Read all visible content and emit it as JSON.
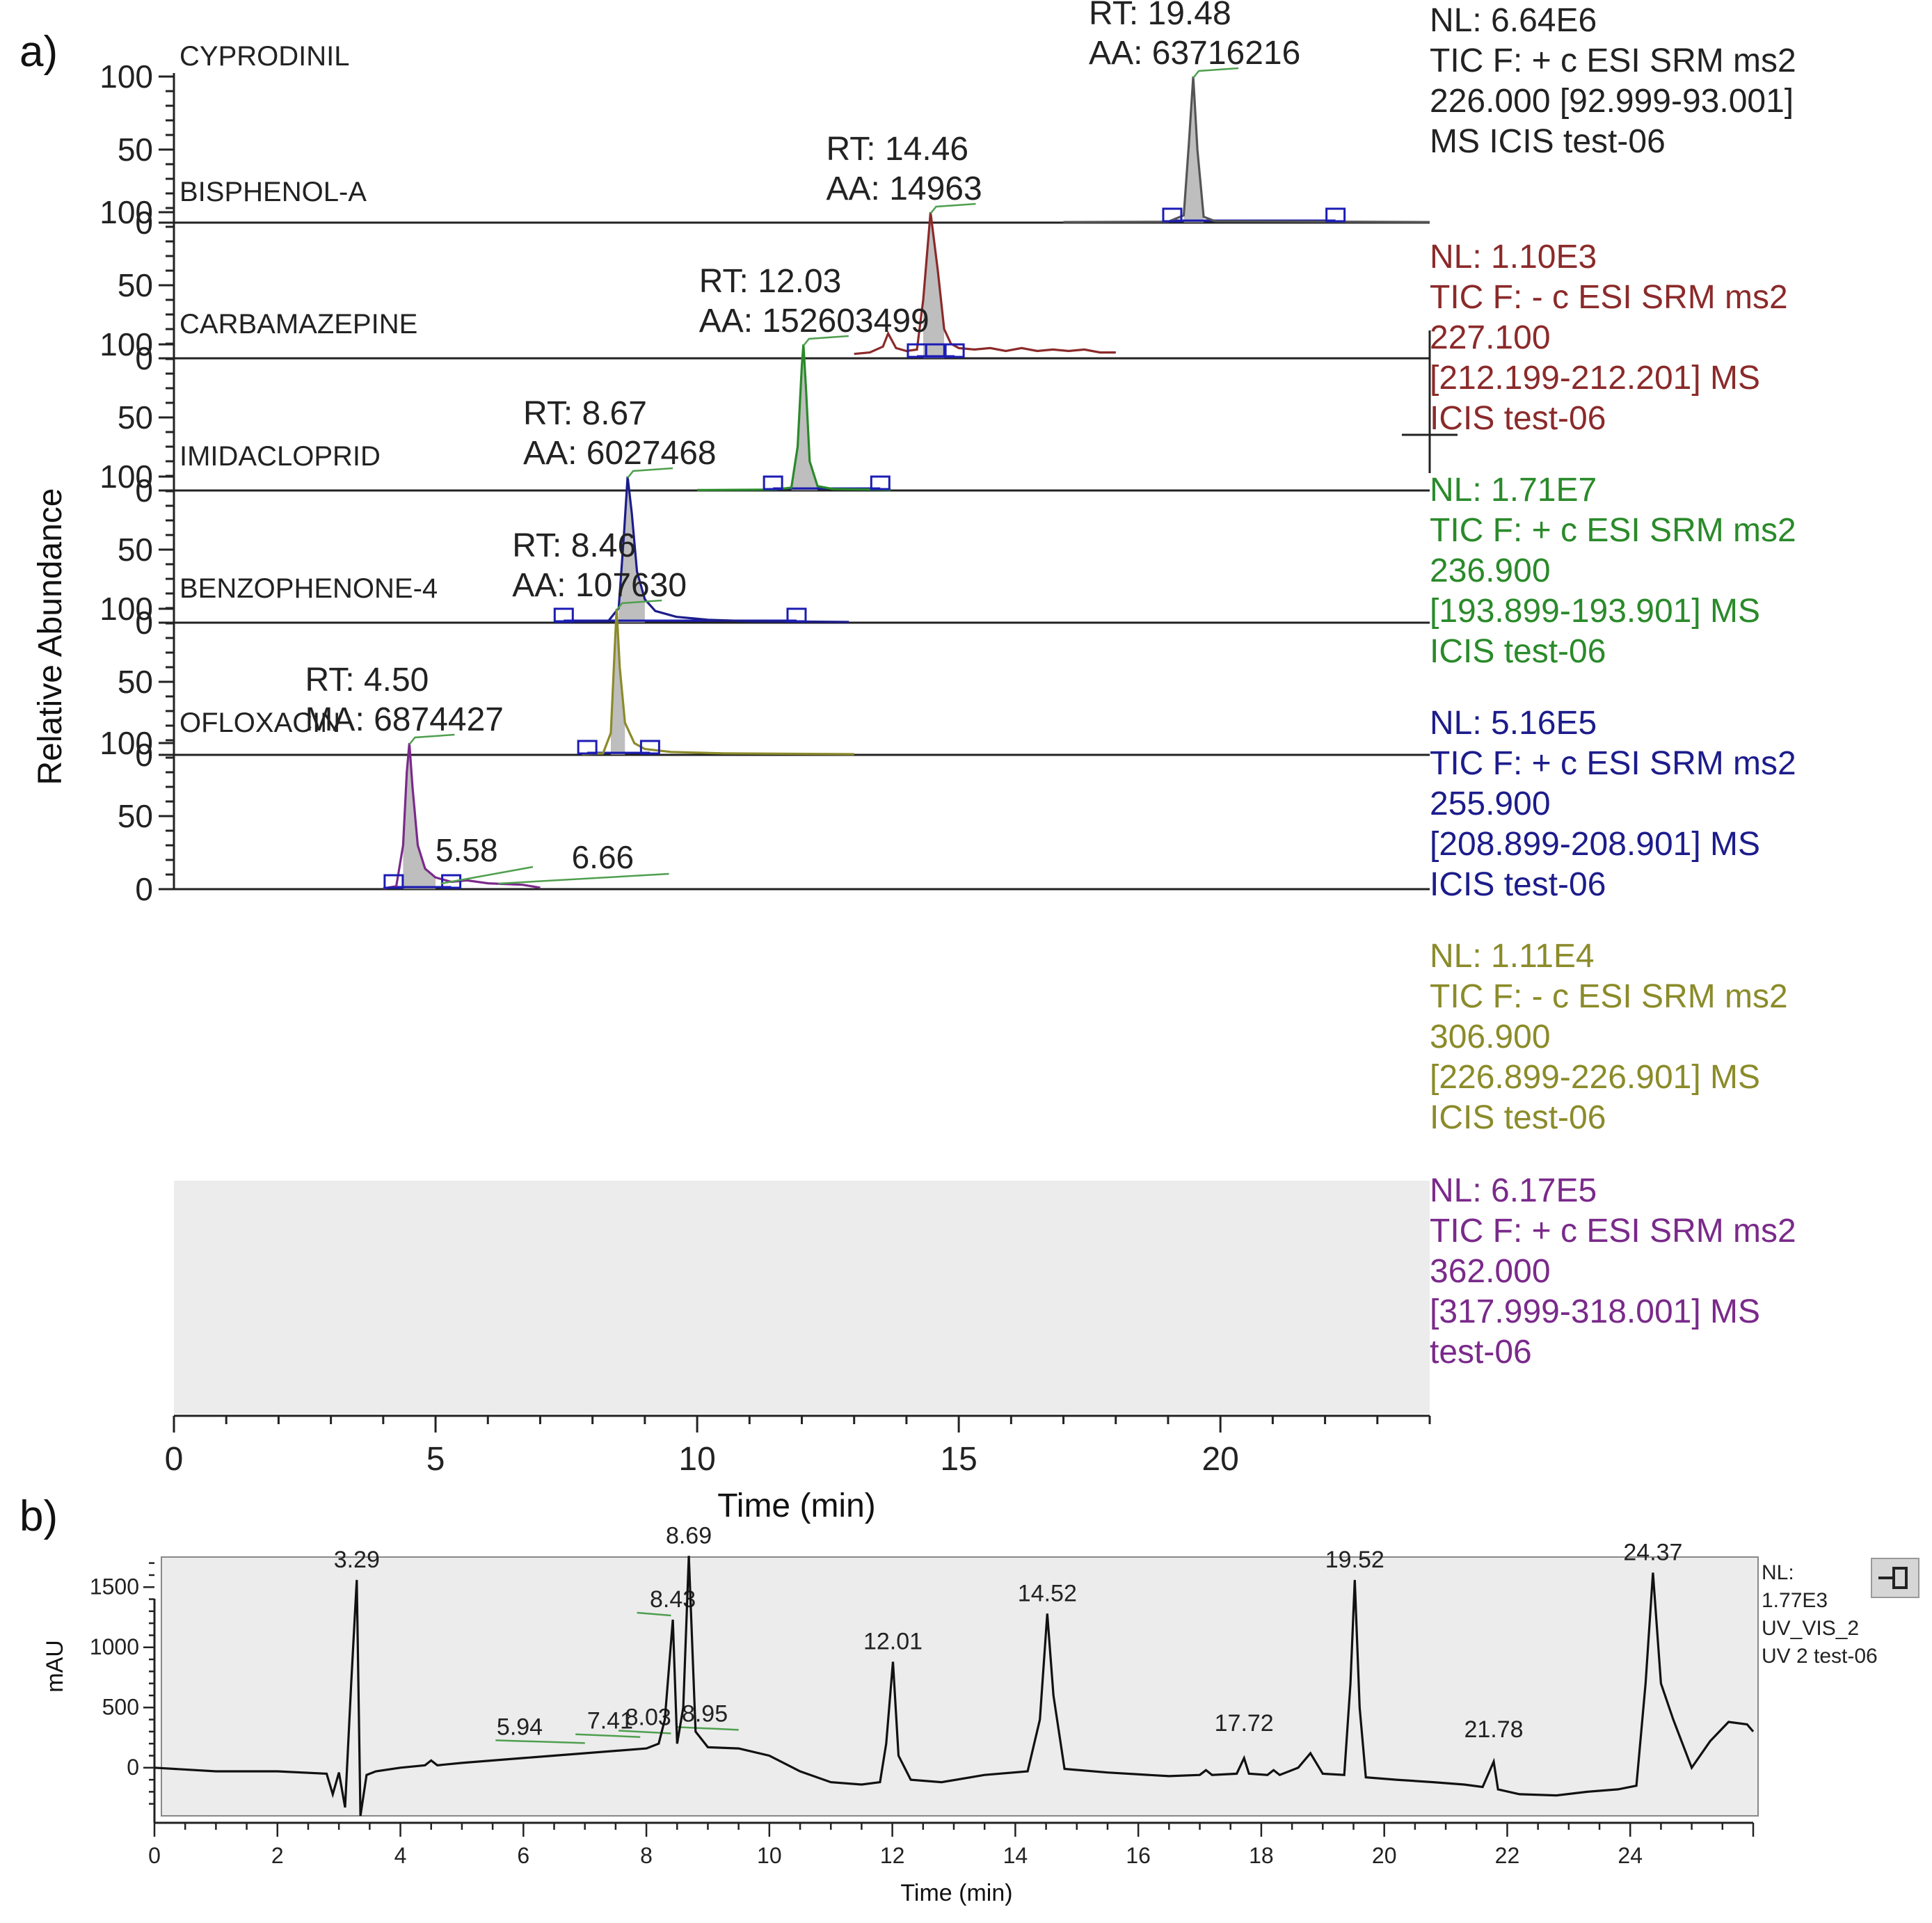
{
  "figure": {
    "panel_a_label": "a)",
    "panel_b_label": "b)"
  },
  "colors": {
    "black": "#111111",
    "axis": "#222222",
    "baseline": "#1c1cb4",
    "ofloxacin_bg": "#ececec",
    "panel_b_bg": "#ececec",
    "annotation_line": "#4f9f4f"
  },
  "chart_data": [
    {
      "type": "line",
      "title": "",
      "xlabel": "Time (min)",
      "ylabel": "Relative Abundance",
      "xlim": [
        0,
        24
      ],
      "xticks": [
        0,
        5,
        10,
        15,
        20
      ],
      "xtick_labels": [
        "0",
        "5",
        "10",
        "15",
        "20"
      ],
      "ylim": [
        0,
        100
      ],
      "ytick_labels": [
        "100",
        "50",
        "0"
      ],
      "series": [
        {
          "name": "CYPRODINIL",
          "color": "#555555",
          "peak_rt": 19.48,
          "annotations": [
            "RT: 19.48",
            "AA: 63716216"
          ],
          "info_lines": [
            "NL: 6.64E6",
            "TIC F: + c ESI SRM ms2",
            "226.000 [92.999-93.001]",
            "MS  ICIS test-06"
          ],
          "info_color": "#222222",
          "x_range": [
            17,
            24
          ],
          "markers_x": [
            19.08,
            22.2
          ],
          "points": [
            [
              17,
              0.4
            ],
            [
              19.0,
              0.6
            ],
            [
              19.3,
              5
            ],
            [
              19.4,
              55
            ],
            [
              19.48,
              100
            ],
            [
              19.56,
              50
            ],
            [
              19.68,
              4
            ],
            [
              19.9,
              1
            ],
            [
              24,
              0.4
            ]
          ],
          "shaded": [
            19.25,
            19.75
          ]
        },
        {
          "name": "BISPHENOL-A",
          "color": "#8b2a2a",
          "peak_rt": 14.46,
          "annotations": [
            "RT: 14.46",
            "AA: 14963"
          ],
          "info_lines": [
            "NL: 1.10E3",
            "TIC F: - c ESI SRM ms2",
            "227.100",
            "[212.199-212.201]  MS",
            "ICIS test-06"
          ],
          "info_color": "#8b2a2a",
          "x_range": [
            13,
            18
          ],
          "markers_x": [
            14.2,
            14.55,
            14.92
          ],
          "points": [
            [
              13,
              3
            ],
            [
              13.3,
              4
            ],
            [
              13.55,
              8
            ],
            [
              13.65,
              17
            ],
            [
              13.8,
              7
            ],
            [
              14.0,
              5
            ],
            [
              14.2,
              6
            ],
            [
              14.32,
              40
            ],
            [
              14.46,
              100
            ],
            [
              14.6,
              60
            ],
            [
              14.72,
              20
            ],
            [
              14.85,
              10
            ],
            [
              15.0,
              7
            ],
            [
              15.3,
              6
            ],
            [
              15.6,
              7
            ],
            [
              15.9,
              5
            ],
            [
              16.2,
              7
            ],
            [
              16.5,
              5
            ],
            [
              16.8,
              6
            ],
            [
              17.1,
              5
            ],
            [
              17.4,
              6
            ],
            [
              17.7,
              4
            ],
            [
              18,
              4
            ]
          ],
          "shaded": [
            14.25,
            14.8
          ]
        },
        {
          "name": "CARBAMAZEPINE",
          "color": "#2a8a2a",
          "peak_rt": 12.03,
          "annotations": [
            "RT: 12.03",
            "AA: 152603499"
          ],
          "info_lines": [
            "NL: 1.71E7",
            "TIC F: + c ESI SRM ms2",
            "236.900",
            "[193.899-193.901]  MS",
            "ICIS test-06"
          ],
          "info_color": "#2a8a2a",
          "x_range": [
            10,
            13.7
          ],
          "markers_x": [
            11.45,
            13.5
          ],
          "points": [
            [
              10,
              0.3
            ],
            [
              11.5,
              0.6
            ],
            [
              11.8,
              2
            ],
            [
              11.92,
              30
            ],
            [
              12.0,
              85
            ],
            [
              12.03,
              100
            ],
            [
              12.08,
              70
            ],
            [
              12.15,
              20
            ],
            [
              12.3,
              3
            ],
            [
              12.6,
              1
            ],
            [
              13.7,
              0.5
            ]
          ],
          "shaded": [
            11.8,
            12.3
          ]
        },
        {
          "name": "IMIDACLOPRID",
          "color": "#1c1c8c",
          "peak_rt": 8.67,
          "annotations": [
            "RT: 8.67",
            "AA: 6027468"
          ],
          "info_lines": [
            "NL: 5.16E5",
            "TIC F: + c ESI SRM ms2",
            "255.900",
            "[208.899-208.901]  MS",
            "ICIS test-06"
          ],
          "info_color": "#1c1c8c",
          "x_range": [
            7.3,
            12.9
          ],
          "markers_x": [
            7.45,
            11.9
          ],
          "points": [
            [
              7.3,
              0.5
            ],
            [
              8.3,
              1
            ],
            [
              8.5,
              10
            ],
            [
              8.6,
              60
            ],
            [
              8.67,
              100
            ],
            [
              8.75,
              75
            ],
            [
              8.85,
              35
            ],
            [
              9.0,
              16
            ],
            [
              9.2,
              8
            ],
            [
              9.6,
              4
            ],
            [
              10.2,
              2
            ],
            [
              11,
              1
            ],
            [
              12.9,
              0.5
            ]
          ],
          "shaded": [
            8.45,
            9.15
          ]
        },
        {
          "name": "BENZOPHENONE-4",
          "color": "#8b8b2a",
          "peak_rt": 8.46,
          "annotations": [
            "RT: 8.46",
            "AA: 107630"
          ],
          "info_lines": [
            "NL: 1.11E4",
            "TIC F: - c ESI SRM ms2",
            "306.900",
            "[226.899-226.901]  MS",
            "ICIS test-06"
          ],
          "info_color": "#8b8b2a",
          "x_range": [
            7.8,
            13
          ],
          "markers_x": [
            7.9,
            9.1
          ],
          "points": [
            [
              7.8,
              0.5
            ],
            [
              8.2,
              1
            ],
            [
              8.35,
              15
            ],
            [
              8.42,
              70
            ],
            [
              8.46,
              100
            ],
            [
              8.52,
              60
            ],
            [
              8.62,
              22
            ],
            [
              8.8,
              8
            ],
            [
              9.0,
              4
            ],
            [
              9.5,
              2
            ],
            [
              10.5,
              1
            ],
            [
              13,
              0.5
            ]
          ],
          "shaded": [
            8.3,
            8.75
          ]
        },
        {
          "name": "OFLOXACIN",
          "color": "#7a2a8a",
          "peak_rt": 4.5,
          "annotations": [
            "RT: 4.50",
            "MA: 6874427"
          ],
          "secondary_peaks": [
            5.58,
            6.66
          ],
          "secondary_labels": [
            "5.58",
            "6.66"
          ],
          "info_lines": [
            "NL: 6.17E5",
            "TIC F: + c ESI SRM ms2",
            "362.000",
            "[317.999-318.001]  MS",
            "test-06"
          ],
          "info_color": "#7a2a8a",
          "x_range": [
            4.0,
            7.0
          ],
          "markers_x": [
            4.2,
            5.3
          ],
          "points": [
            [
              4.0,
              0.5
            ],
            [
              4.25,
              2
            ],
            [
              4.38,
              30
            ],
            [
              4.45,
              80
            ],
            [
              4.5,
              100
            ],
            [
              4.56,
              70
            ],
            [
              4.66,
              30
            ],
            [
              4.8,
              14
            ],
            [
              5.0,
              8
            ],
            [
              5.3,
              5
            ],
            [
              5.6,
              6
            ],
            [
              6.0,
              4
            ],
            [
              6.66,
              3
            ],
            [
              7.0,
              1
            ]
          ],
          "shaded": [
            4.3,
            5.1
          ]
        }
      ]
    },
    {
      "type": "line",
      "title": "",
      "xlabel": "Time (min)",
      "ylabel": "mAU",
      "xlim": [
        0,
        26
      ],
      "xticks": [
        0,
        2,
        4,
        6,
        8,
        10,
        12,
        14,
        16,
        18,
        20,
        22,
        24
      ],
      "xtick_labels": [
        "0",
        "2",
        "4",
        "6",
        "8",
        "10",
        "12",
        "14",
        "16",
        "18",
        "20",
        "22",
        "24"
      ],
      "ylim": [
        -400,
        1750
      ],
      "yticks": [
        1500,
        1000,
        500,
        0
      ],
      "ytick_labels": [
        "1500",
        "1000",
        "500",
        "0"
      ],
      "info_lines": [
        "NL:",
        "1.77E3",
        "UV_VIS_2",
        "UV 2 test-06"
      ],
      "peak_labels": [
        {
          "x": 3.29,
          "label": "3.29",
          "y": 1560
        },
        {
          "x": 5.94,
          "label": "5.94",
          "y": 170
        },
        {
          "x": 7.41,
          "label": "7.41",
          "y": 220
        },
        {
          "x": 8.03,
          "label": "8.03",
          "y": 250
        },
        {
          "x": 8.43,
          "label": "8.43",
          "y": 1230
        },
        {
          "x": 8.69,
          "label": "8.69",
          "y": 1760
        },
        {
          "x": 8.95,
          "label": "8.95",
          "y": 280
        },
        {
          "x": 12.01,
          "label": "12.01",
          "y": 880
        },
        {
          "x": 14.52,
          "label": "14.52",
          "y": 1280
        },
        {
          "x": 17.72,
          "label": "17.72",
          "y": 200
        },
        {
          "x": 19.52,
          "label": "19.52",
          "y": 1560
        },
        {
          "x": 21.78,
          "label": "21.78",
          "y": 150
        },
        {
          "x": 24.37,
          "label": "24.37",
          "y": 1620
        }
      ],
      "points": [
        [
          0,
          0
        ],
        [
          1,
          -30
        ],
        [
          2,
          -30
        ],
        [
          2.8,
          -50
        ],
        [
          2.9,
          -220
        ],
        [
          3.0,
          -40
        ],
        [
          3.1,
          -330
        ],
        [
          3.2,
          700
        ],
        [
          3.29,
          1560
        ],
        [
          3.35,
          -400
        ],
        [
          3.45,
          -60
        ],
        [
          3.6,
          -30
        ],
        [
          4.0,
          0
        ],
        [
          4.4,
          20
        ],
        [
          4.5,
          60
        ],
        [
          4.6,
          20
        ],
        [
          5,
          40
        ],
        [
          6,
          80
        ],
        [
          7,
          120
        ],
        [
          8,
          160
        ],
        [
          8.2,
          200
        ],
        [
          8.3,
          400
        ],
        [
          8.43,
          1230
        ],
        [
          8.5,
          200
        ],
        [
          8.6,
          500
        ],
        [
          8.69,
          1760
        ],
        [
          8.8,
          300
        ],
        [
          9.0,
          170
        ],
        [
          9.5,
          160
        ],
        [
          10,
          100
        ],
        [
          10.5,
          -30
        ],
        [
          11,
          -120
        ],
        [
          11.5,
          -140
        ],
        [
          11.8,
          -120
        ],
        [
          11.9,
          200
        ],
        [
          12.01,
          880
        ],
        [
          12.1,
          100
        ],
        [
          12.3,
          -100
        ],
        [
          12.8,
          -120
        ],
        [
          13.5,
          -60
        ],
        [
          14.2,
          -30
        ],
        [
          14.4,
          400
        ],
        [
          14.52,
          1280
        ],
        [
          14.62,
          600
        ],
        [
          14.8,
          -10
        ],
        [
          15.5,
          -40
        ],
        [
          16.5,
          -70
        ],
        [
          17.0,
          -60
        ],
        [
          17.1,
          -20
        ],
        [
          17.2,
          -60
        ],
        [
          17.6,
          -50
        ],
        [
          17.72,
          80
        ],
        [
          17.8,
          -50
        ],
        [
          18.1,
          -60
        ],
        [
          18.2,
          -20
        ],
        [
          18.3,
          -60
        ],
        [
          18.6,
          0
        ],
        [
          18.8,
          120
        ],
        [
          19.0,
          -50
        ],
        [
          19.35,
          -60
        ],
        [
          19.45,
          700
        ],
        [
          19.52,
          1560
        ],
        [
          19.6,
          500
        ],
        [
          19.7,
          -80
        ],
        [
          20.2,
          -100
        ],
        [
          20.8,
          -120
        ],
        [
          21.3,
          -140
        ],
        [
          21.6,
          -160
        ],
        [
          21.78,
          50
        ],
        [
          21.85,
          -180
        ],
        [
          22.2,
          -220
        ],
        [
          22.8,
          -230
        ],
        [
          23.3,
          -200
        ],
        [
          23.8,
          -180
        ],
        [
          24.1,
          -150
        ],
        [
          24.25,
          700
        ],
        [
          24.37,
          1620
        ],
        [
          24.5,
          700
        ],
        [
          24.7,
          400
        ],
        [
          25.0,
          0
        ],
        [
          25.3,
          220
        ],
        [
          25.6,
          380
        ],
        [
          25.9,
          360
        ],
        [
          26,
          300
        ]
      ]
    }
  ]
}
